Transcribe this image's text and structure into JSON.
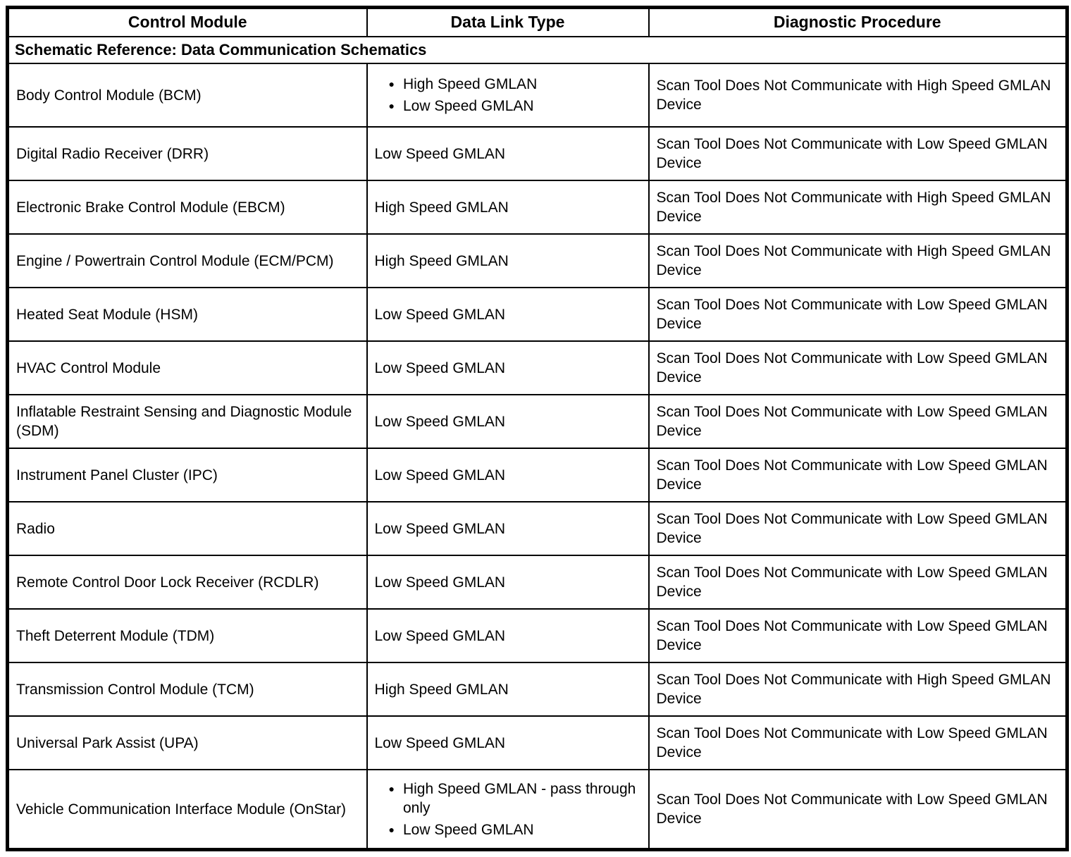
{
  "table": {
    "headers": [
      {
        "label": "Control Module"
      },
      {
        "label": "Data Link Type"
      },
      {
        "label": "Diagnostic Procedure"
      }
    ],
    "schematic_reference": "Schematic Reference: Data Communication Schematics",
    "bullet_glyph": "●",
    "rows": [
      {
        "module": "Body Control Module (BCM)",
        "bulleted": true,
        "data_link": [
          "High Speed GMLAN",
          "Low Speed GMLAN"
        ],
        "procedure": "Scan Tool Does Not Communicate with High Speed GMLAN Device",
        "size": "tall"
      },
      {
        "module": "Digital Radio Receiver (DRR)",
        "bulleted": false,
        "data_link": [
          "Low Speed GMLAN"
        ],
        "procedure": "Scan Tool Does Not Communicate with Low Speed GMLAN Device",
        "size": "normal"
      },
      {
        "module": "Electronic Brake Control Module (EBCM)",
        "bulleted": false,
        "data_link": [
          "High Speed GMLAN"
        ],
        "procedure": "Scan Tool Does Not Communicate with High Speed GMLAN Device",
        "size": "normal"
      },
      {
        "module": "Engine / Powertrain Control Module (ECM/PCM)",
        "bulleted": false,
        "data_link": [
          "High Speed GMLAN"
        ],
        "procedure": "Scan Tool Does Not Communicate with High Speed GMLAN Device",
        "size": "normal"
      },
      {
        "module": "Heated Seat Module (HSM)",
        "bulleted": false,
        "data_link": [
          "Low Speed GMLAN"
        ],
        "procedure": "Scan Tool Does Not Communicate with Low Speed GMLAN Device",
        "size": "normal"
      },
      {
        "module": "HVAC Control Module",
        "bulleted": false,
        "data_link": [
          "Low Speed GMLAN"
        ],
        "procedure": "Scan Tool Does Not Communicate with Low Speed GMLAN Device",
        "size": "normal"
      },
      {
        "module": "Inflatable Restraint Sensing and Diagnostic Module (SDM)",
        "bulleted": false,
        "data_link": [
          "Low Speed GMLAN"
        ],
        "procedure": "Scan Tool Does Not Communicate with Low Speed GMLAN Device",
        "size": "normal"
      },
      {
        "module": "Instrument Panel Cluster (IPC)",
        "bulleted": false,
        "data_link": [
          "Low Speed GMLAN"
        ],
        "procedure": "Scan Tool Does Not Communicate with Low Speed GMLAN Device",
        "size": "normal"
      },
      {
        "module": "Radio",
        "bulleted": false,
        "data_link": [
          "Low Speed GMLAN"
        ],
        "procedure": "Scan Tool Does Not Communicate with Low Speed GMLAN Device",
        "size": "normal"
      },
      {
        "module": "Remote Control Door Lock Receiver (RCDLR)",
        "bulleted": false,
        "data_link": [
          "Low Speed GMLAN"
        ],
        "procedure": "Scan Tool Does Not Communicate with Low Speed GMLAN Device",
        "size": "normal"
      },
      {
        "module": "Theft Deterrent Module (TDM)",
        "bulleted": false,
        "data_link": [
          "Low Speed GMLAN"
        ],
        "procedure": "Scan Tool Does Not Communicate with Low Speed GMLAN Device",
        "size": "normal"
      },
      {
        "module": "Transmission Control Module (TCM)",
        "bulleted": false,
        "data_link": [
          "High Speed GMLAN"
        ],
        "procedure": "Scan Tool Does Not Communicate with High Speed GMLAN Device",
        "size": "normal"
      },
      {
        "module": "Universal Park Assist (UPA)",
        "bulleted": false,
        "data_link": [
          "Low Speed GMLAN"
        ],
        "procedure": "Scan Tool Does Not Communicate with Low Speed GMLAN Device",
        "size": "normal"
      },
      {
        "module": "Vehicle Communication Interface Module (OnStar)",
        "bulleted": true,
        "data_link": [
          "High Speed GMLAN - pass through only",
          "Low Speed GMLAN"
        ],
        "procedure": "Scan Tool Does Not Communicate with Low Speed GMLAN Device",
        "size": "tallest"
      }
    ]
  }
}
